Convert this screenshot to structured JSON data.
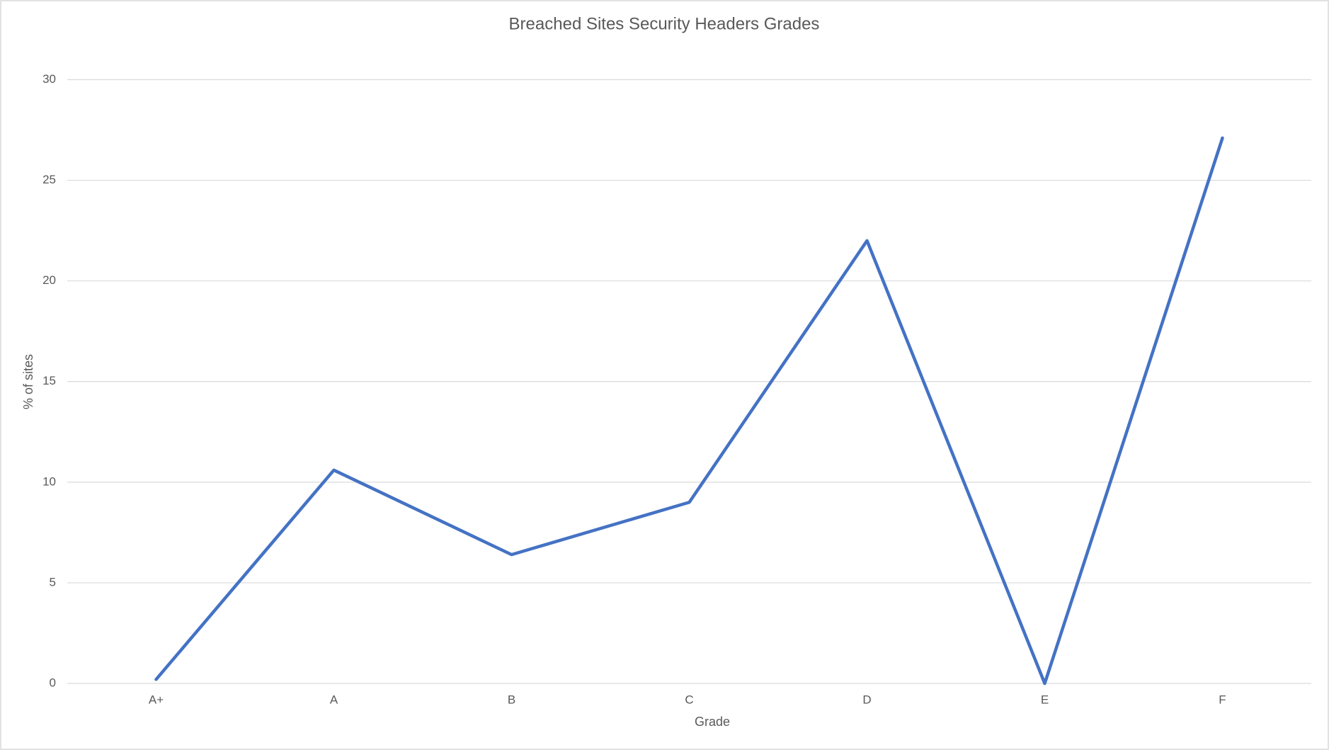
{
  "chart_data": {
    "type": "line",
    "title": "Breached Sites Security Headers Grades",
    "x_label": "Grade",
    "y_label": "% of sites",
    "categories": [
      "A+",
      "A",
      "B",
      "C",
      "D",
      "E",
      "F"
    ],
    "values": [
      0.2,
      10.6,
      6.4,
      9.0,
      22.0,
      0,
      27.1
    ],
    "color": "#4472c4",
    "ylim": [
      0,
      30
    ],
    "yticks": [
      0,
      5,
      10,
      15,
      20,
      25,
      30
    ],
    "grid": true
  }
}
